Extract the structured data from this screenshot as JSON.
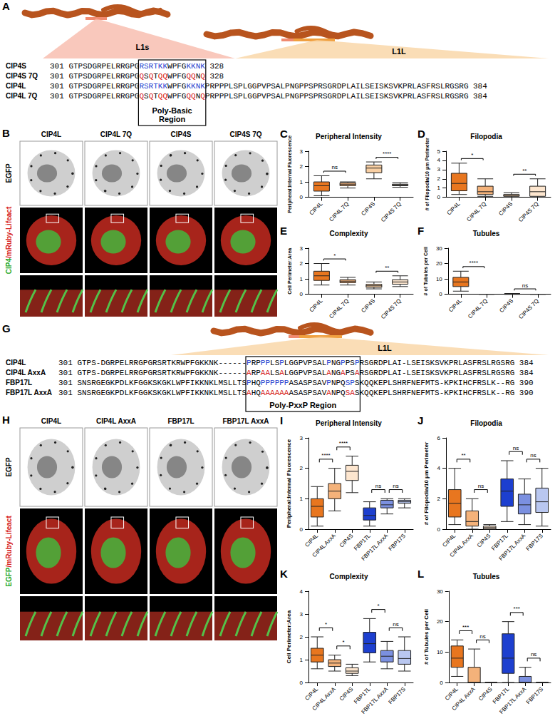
{
  "panels": {
    "A": {
      "letter": "A",
      "domains": [
        "L1s",
        "L1L"
      ],
      "region_label": "Poly-Basic Region",
      "region_start": 15,
      "region_length": 14,
      "rows": [
        {
          "label": "CIP4S",
          "start": 301,
          "end": 328,
          "seq": [
            "GTPSDGRPELRRGPG",
            {
              "t": "RSRTKK",
              "color": "#1f3fd0"
            },
            "WPFG",
            {
              "t": "KKNK",
              "color": "#1f3fd0"
            }
          ]
        },
        {
          "label": "CIP4S 7Q",
          "start": 301,
          "end": 328,
          "seq": [
            "GTPSDGRPELRRGPG",
            {
              "t": "Q",
              "color": "#d62020"
            },
            "S",
            {
              "t": "Q",
              "color": "#d62020"
            },
            "T",
            {
              "t": "QQ",
              "color": "#d62020"
            },
            "WPFG",
            {
              "t": "QQ",
              "color": "#d62020"
            },
            "N",
            {
              "t": "Q",
              "color": "#d62020"
            }
          ]
        },
        {
          "label": "CIP4L",
          "start": 301,
          "end": 384,
          "seq": [
            "GTPSDGRPELRRGPG",
            {
              "t": "RSRTKK",
              "color": "#1f3fd0"
            },
            "WPFG",
            {
              "t": "KKNK",
              "color": "#1f3fd0"
            },
            "PRPPPLSPLGGPVPSALPNGPPSPRSGRDPLAILSEISKSVKPRLASFRSLRGSRG"
          ]
        },
        {
          "label": "CIP4L 7Q",
          "start": 301,
          "end": 384,
          "seq": [
            "GTPSDGRPELRRGPG",
            {
              "t": "Q",
              "color": "#d62020"
            },
            "S",
            {
              "t": "Q",
              "color": "#d62020"
            },
            "T",
            {
              "t": "QQ",
              "color": "#d62020"
            },
            "WPFG",
            {
              "t": "QQ",
              "color": "#d62020"
            },
            "N",
            {
              "t": "Q",
              "color": "#d62020"
            },
            "PRPPPLSPLGGPVPSALPNGPPSPRSGRDPLAILSEISKSVKPRLASFRSLRGSRG"
          ]
        }
      ]
    },
    "B": {
      "letter": "B",
      "columns": [
        "CIP4L",
        "CIP4L 7Q",
        "CIP4S",
        "CIP4S 7Q"
      ],
      "row_labels": [
        [
          "EGFP"
        ],
        [
          {
            "t": "CIP4",
            "color": "#2aa82a"
          },
          {
            "t": "/mRuby-Lifeact",
            "color": "#d62020"
          }
        ]
      ]
    },
    "G": {
      "letter": "G",
      "domains": [
        "L1L"
      ],
      "region_label": "Poly-PxxP Region",
      "region_start": 36,
      "region_length": 24,
      "rows": [
        {
          "label": "CIP4L",
          "start": 301,
          "end": 384,
          "seq": [
            "GTPS-DGRPELRRGPGRSRTKRWPFGKKNK------",
            {
              "t": "P",
              "color": "#1f3fd0"
            },
            "RP",
            {
              "t": "PP",
              "color": "#1f3fd0"
            },
            "LS",
            {
              "t": "P",
              "color": "#1f3fd0"
            },
            "LGGPVPSAL",
            {
              "t": "P",
              "color": "#1f3fd0"
            },
            "NG",
            {
              "t": "P",
              "color": "#1f3fd0"
            },
            "PS",
            {
              "t": "P",
              "color": "#1f3fd0"
            },
            "RSGRDPLAI-LSEISKSVKPRLASFRSLRGSRG"
          ]
        },
        {
          "label": "CIP4L AxxA",
          "start": 301,
          "end": 384,
          "seq": [
            "GTPS-DGRPELRRGPGRSRTKRWPFGKKNK------",
            {
              "t": "A",
              "color": "#d62020"
            },
            "RP",
            {
              "t": "AA",
              "color": "#d62020"
            },
            "LS",
            {
              "t": "A",
              "color": "#d62020"
            },
            "LGGPVPSAL",
            {
              "t": "A",
              "color": "#d62020"
            },
            "NG",
            {
              "t": "A",
              "color": "#d62020"
            },
            "PS",
            {
              "t": "A",
              "color": "#d62020"
            },
            "RSGRDPLAI-LSEISKSVKPRLASFRSLRGSRG"
          ]
        },
        {
          "label": "FBP17L",
          "start": 301,
          "end": 390,
          "seq": [
            "SNSRGEGKPDLKFGGKSKGKLWPFIKKNKLMSLLTS",
            {
              "t": "P",
              "color": "#1f3fd0"
            },
            "HQ",
            {
              "t": "PPPPPP",
              "color": "#1f3fd0"
            },
            "ASASPSAV",
            {
              "t": "P",
              "color": "#1f3fd0"
            },
            "NPQ",
            {
              "t": "SP",
              "color": "#1f3fd0"
            },
            "SKQQKEPLSHRFNEFMTS-KPKIHCFRSLK--RG"
          ]
        },
        {
          "label": "FBP17L AxxA",
          "start": 301,
          "end": 390,
          "seq": [
            "SNSRGEGKPDLKFGGKSKGKLWPFIKKNKLMSLLTS",
            {
              "t": "A",
              "color": "#d62020"
            },
            "HQ",
            {
              "t": "AAAAAA",
              "color": "#d62020"
            },
            "ASASPSAV",
            {
              "t": "A",
              "color": "#d62020"
            },
            "NPQ",
            {
              "t": "SA",
              "color": "#d62020"
            },
            "SKQQKEPLSHRFNEFMTS-KPKIHCFRSLK--RG"
          ]
        }
      ]
    },
    "H": {
      "letter": "H",
      "columns": [
        "CIP4L",
        "CIP4L AxxA",
        "FBP17L",
        "FBP17L AxxA"
      ],
      "row_labels": [
        [
          "EGFP"
        ],
        [
          {
            "t": "EGFP",
            "color": "#2aa82a"
          },
          {
            "t": "/mRuby-Lifeact",
            "color": "#d62020"
          }
        ]
      ]
    }
  },
  "chart_data": [
    {
      "type": "boxplot",
      "panel": "C",
      "title": "Peripheral Intensity",
      "ylabel": "Peripheral:Internal Fluorescence",
      "categories": [
        "CIP4L",
        "CIP4L 7Q",
        "CIP4S",
        "CIP4S 7Q"
      ],
      "colors": [
        "#e8761f",
        "#f4b27a",
        "#f9cfa3",
        "#fde6cf"
      ],
      "values": [
        [
          0.1,
          0.4,
          0.75,
          1.0,
          1.4
        ],
        [
          0.6,
          0.75,
          0.85,
          0.95,
          1.0
        ],
        [
          1.2,
          1.6,
          1.9,
          2.1,
          2.3
        ],
        [
          0.65,
          0.75,
          0.8,
          0.85,
          0.95
        ]
      ],
      "ylim": [
        0,
        3
      ],
      "yticks": [
        0,
        1,
        2,
        3
      ],
      "significance": [
        {
          "pair": [
            0,
            1
          ],
          "label": "ns"
        },
        {
          "pair": [
            2,
            3
          ],
          "label": "****"
        }
      ]
    },
    {
      "type": "boxplot",
      "panel": "D",
      "title": "Filopodia",
      "ylabel": "# of Filopodia/10 μm Perimeter",
      "categories": [
        "CIP4L",
        "CIP4L 7Q",
        "CIP4S",
        "CIP4S 7Q"
      ],
      "colors": [
        "#e8761f",
        "#f4b27a",
        "#f9cfa3",
        "#fde6cf"
      ],
      "values": [
        [
          0.3,
          0.7,
          1.5,
          2.6,
          3.7
        ],
        [
          0.1,
          0.3,
          0.6,
          1.2,
          2.0
        ],
        [
          0,
          0.1,
          0.2,
          0.3,
          0.5
        ],
        [
          0,
          0.1,
          0.6,
          1.2,
          2.0
        ]
      ],
      "ylim": [
        0,
        5
      ],
      "yticks": [
        0,
        1,
        2,
        3,
        4,
        5
      ],
      "significance": [
        {
          "pair": [
            0,
            1
          ],
          "label": "*"
        },
        {
          "pair": [
            2,
            3
          ],
          "label": "**"
        }
      ]
    },
    {
      "type": "boxplot",
      "panel": "E",
      "title": "Complexity",
      "ylabel": "Cell Perimeter:Area",
      "categories": [
        "CIP4L",
        "CIP4L 7Q",
        "CIP4S",
        "CIP4S 7Q"
      ],
      "colors": [
        "#e8761f",
        "#f4b27a",
        "#f9cfa3",
        "#fde6cf"
      ],
      "values": [
        [
          0.6,
          0.9,
          1.2,
          1.5,
          2.0
        ],
        [
          0.6,
          0.75,
          0.85,
          0.95,
          1.1
        ],
        [
          0.35,
          0.45,
          0.55,
          0.65,
          0.8
        ],
        [
          0.5,
          0.65,
          0.8,
          0.95,
          1.2
        ]
      ],
      "ylim": [
        0,
        3
      ],
      "yticks": [
        0,
        1,
        2,
        3
      ],
      "significance": [
        {
          "pair": [
            0,
            1
          ],
          "label": "*"
        },
        {
          "pair": [
            2,
            3
          ],
          "label": "**"
        }
      ]
    },
    {
      "type": "boxplot",
      "panel": "F",
      "title": "Tubules",
      "ylabel": "# of Tubules per Cell",
      "categories": [
        "CIP4L",
        "CIP4L 7Q",
        "CIP4S",
        "CIP4S 7Q"
      ],
      "colors": [
        "#e8761f",
        "#f4b27a",
        "#f9cfa3",
        "#fde6cf"
      ],
      "values": [
        [
          2,
          5,
          8,
          11,
          15
        ],
        [
          0,
          0,
          0,
          0,
          0
        ],
        [
          0,
          0,
          0,
          0,
          0.5
        ],
        [
          0,
          0,
          0,
          0,
          0
        ]
      ],
      "ylim": [
        0,
        30
      ],
      "yticks": [
        0,
        10,
        20,
        30
      ],
      "significance": [
        {
          "pair": [
            0,
            1
          ],
          "label": "****"
        },
        {
          "pair": [
            2,
            3
          ],
          "label": "ns"
        }
      ]
    },
    {
      "type": "boxplot",
      "panel": "I",
      "title": "Peripheral Intensity",
      "ylabel": "Peripheral:Internal Fluorescence",
      "categories": [
        "CIP4L",
        "CIP4L AxxA",
        "CIP4S",
        "FBP17L",
        "FBP17L AxxA",
        "FBP17S"
      ],
      "colors": [
        "#e8761f",
        "#f4b27a",
        "#fde6cf",
        "#1d3fcf",
        "#7b90e0",
        "#b9c7f0"
      ],
      "values": [
        [
          0.1,
          0.4,
          0.75,
          1.0,
          1.4
        ],
        [
          0.6,
          1.0,
          1.25,
          1.5,
          2.0
        ],
        [
          1.2,
          1.6,
          1.9,
          2.1,
          2.4
        ],
        [
          0.1,
          0.3,
          0.45,
          0.7,
          0.9
        ],
        [
          0.5,
          0.7,
          0.8,
          0.95,
          1.0
        ],
        [
          0.7,
          0.85,
          0.9,
          0.95,
          1.0
        ]
      ],
      "ylim": [
        0,
        3
      ],
      "yticks": [
        0,
        1,
        2,
        3
      ],
      "significance": [
        {
          "pair": [
            0,
            1
          ],
          "label": "****"
        },
        {
          "pair": [
            1,
            2
          ],
          "label": "****"
        },
        {
          "pair": [
            3,
            4
          ],
          "label": "ns"
        },
        {
          "pair": [
            4,
            5
          ],
          "label": "ns"
        }
      ]
    },
    {
      "type": "boxplot",
      "panel": "J",
      "title": "Filopodia",
      "ylabel": "# of Filopodia/10 μm Perimeter",
      "categories": [
        "CIP4L",
        "CIP4L AxxA",
        "CIP4S",
        "FBP17L",
        "FBP17L AxxA",
        "FBP17S"
      ],
      "colors": [
        "#e8761f",
        "#f4b27a",
        "#fde6cf",
        "#1d3fcf",
        "#7b90e0",
        "#b9c7f0"
      ],
      "values": [
        [
          0.3,
          0.8,
          1.7,
          2.6,
          4.0
        ],
        [
          0,
          0.2,
          0.5,
          1.2,
          2.0
        ],
        [
          0,
          0,
          0.1,
          0.2,
          0.3
        ],
        [
          0.5,
          1.5,
          2.5,
          3.3,
          4.5
        ],
        [
          0.3,
          1.0,
          1.6,
          2.3,
          3.3
        ],
        [
          0.2,
          1.1,
          1.8,
          2.7,
          4.0
        ]
      ],
      "ylim": [
        0,
        6
      ],
      "yticks": [
        0,
        2,
        4,
        6
      ],
      "significance": [
        {
          "pair": [
            0,
            1
          ],
          "label": "**"
        },
        {
          "pair": [
            1,
            2
          ],
          "label": "ns"
        },
        {
          "pair": [
            3,
            4
          ],
          "label": "ns"
        },
        {
          "pair": [
            4,
            5
          ],
          "label": "ns"
        }
      ]
    },
    {
      "type": "boxplot",
      "panel": "K",
      "title": "Complexity",
      "ylabel": "Cell Perimeter:Area",
      "categories": [
        "CIP4L",
        "CIP4L AxxA",
        "CIP4S",
        "FBP17L",
        "FBP17L AxxA",
        "FBP17S"
      ],
      "colors": [
        "#e8761f",
        "#f4b27a",
        "#fde6cf",
        "#1d3fcf",
        "#7b90e0",
        "#b9c7f0"
      ],
      "values": [
        [
          0.6,
          0.9,
          1.2,
          1.5,
          2.0
        ],
        [
          0.5,
          0.7,
          0.85,
          1.0,
          1.2
        ],
        [
          0.3,
          0.4,
          0.5,
          0.65,
          0.8
        ],
        [
          0.9,
          1.3,
          1.7,
          2.2,
          2.8
        ],
        [
          0.6,
          0.9,
          1.15,
          1.4,
          1.8
        ],
        [
          0.5,
          0.8,
          1.05,
          1.4,
          2.0
        ]
      ],
      "ylim": [
        0,
        4
      ],
      "yticks": [
        0,
        1,
        2,
        3,
        4
      ],
      "significance": [
        {
          "pair": [
            0,
            1
          ],
          "label": "*"
        },
        {
          "pair": [
            1,
            2
          ],
          "label": "*"
        },
        {
          "pair": [
            3,
            4
          ],
          "label": "*"
        },
        {
          "pair": [
            4,
            5
          ],
          "label": "ns"
        }
      ]
    },
    {
      "type": "boxplot",
      "panel": "L",
      "title": "Tubules",
      "ylabel": "# of Tubules per Cell",
      "categories": [
        "CIP4L",
        "CIP4L AxxA",
        "CIP4S",
        "FBP17L",
        "FBP17L AxxA",
        "FBP17S"
      ],
      "colors": [
        "#e8761f",
        "#f4b27a",
        "#fde6cf",
        "#1d3fcf",
        "#7b90e0",
        "#b9c7f0"
      ],
      "values": [
        [
          2,
          5,
          8,
          12,
          14
        ],
        [
          0,
          0,
          0,
          5,
          11
        ],
        [
          0,
          0,
          0,
          0,
          0
        ],
        [
          0,
          3,
          8,
          16,
          20
        ],
        [
          0,
          0,
          0,
          2,
          5
        ],
        [
          0,
          0,
          0,
          0,
          0
        ]
      ],
      "ylim": [
        0,
        30
      ],
      "yticks": [
        0,
        10,
        20,
        30
      ],
      "significance": [
        {
          "pair": [
            0,
            1
          ],
          "label": "***"
        },
        {
          "pair": [
            1,
            2
          ],
          "label": "ns"
        },
        {
          "pair": [
            3,
            4
          ],
          "label": "***"
        },
        {
          "pair": [
            4,
            5
          ],
          "label": "ns"
        }
      ]
    }
  ]
}
